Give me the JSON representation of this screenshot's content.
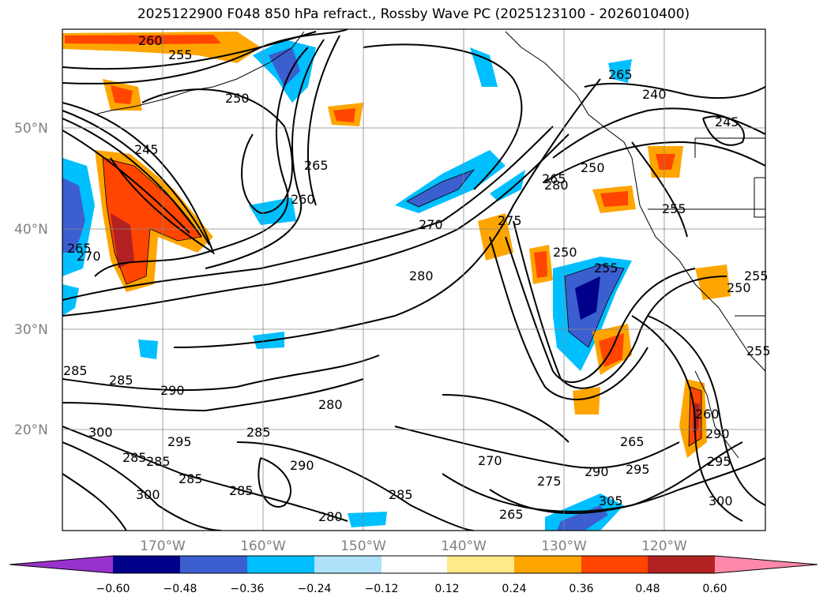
{
  "title": "2025122900 F048 850 hPa refract., Rossby Wave PC (2025123100 - 2026010400)",
  "latitude_labels": [
    "50°N",
    "40°N",
    "30°N",
    "20°N"
  ],
  "longitude_labels": [
    "170°W",
    "160°W",
    "150°W",
    "140°W",
    "130°W",
    "120°W"
  ],
  "contour_labels": [
    "260",
    "255",
    "250",
    "245",
    "265",
    "260",
    "270",
    "280",
    "265",
    "270",
    "275",
    "280",
    "285",
    "285",
    "290",
    "300",
    "295",
    "285",
    "285",
    "300",
    "290",
    "280",
    "285",
    "285",
    "280",
    "270",
    "275",
    "290",
    "265",
    "295",
    "305",
    "300",
    "265",
    "250",
    "255",
    "265",
    "250",
    "255",
    "240",
    "245",
    "255",
    "250",
    "255",
    "260",
    "290",
    "295",
    "265",
    "285",
    "285"
  ],
  "colorbar": {
    "ticks": [
      "−0.60",
      "−0.48",
      "−0.36",
      "−0.24",
      "−0.12",
      "0.12",
      "0.24",
      "0.36",
      "0.48",
      "0.60"
    ],
    "colors": [
      "#9932cc",
      "#00008b",
      "#3b5fcf",
      "#00bfff",
      "#aee3fb",
      "#ffffff",
      "#ffe98a",
      "#ffa500",
      "#ff4500",
      "#b22222",
      "#ff88aa"
    ]
  }
}
